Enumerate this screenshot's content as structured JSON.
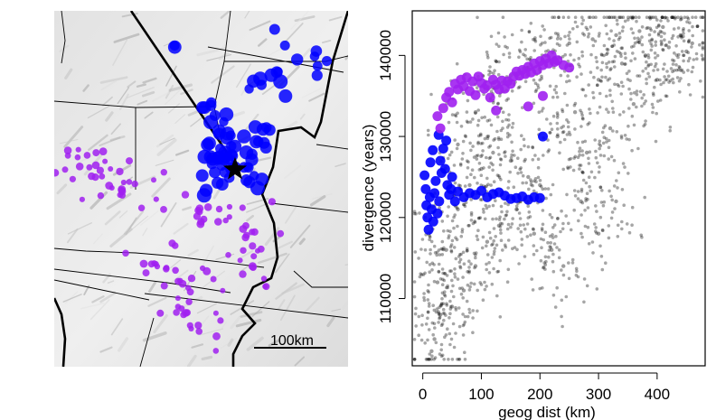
{
  "chart_data": [
    {
      "type": "map",
      "scale_bar_label": "100km",
      "marker": "star",
      "colors": {
        "near_cluster": "#0000ff",
        "far_cluster": "#a020f0",
        "marker": "#000000"
      }
    },
    {
      "type": "scatter",
      "xlabel": "geog dist (km)",
      "ylabel": "divergence (years)",
      "xlim": [
        -18,
        482
      ],
      "ylim": [
        101700,
        145500
      ],
      "x_ticks": [
        0,
        100,
        200,
        300,
        400
      ],
      "y_ticks": [
        110000,
        120000,
        130000,
        140000
      ],
      "series": [
        {
          "color": "#000000",
          "points": [
            [
              10,
              118000
            ],
            [
              25,
              112000
            ],
            [
              40,
              116000
            ],
            [
              60,
              121000
            ],
            [
              80,
              124000
            ],
            [
              100,
              126000
            ],
            [
              120,
              128000
            ],
            [
              150,
              127000
            ],
            [
              180,
              125000
            ],
            [
              200,
              124000
            ],
            [
              230,
              130000
            ],
            [
              260,
              133000
            ],
            [
              300,
              137000
            ],
            [
              340,
              139000
            ],
            [
              380,
              140000
            ],
            [
              420,
              141000
            ],
            [
              450,
              140500
            ],
            [
              30,
              108000
            ],
            [
              50,
              109000
            ],
            [
              70,
              111000
            ],
            [
              90,
              114000
            ],
            [
              110,
              117000
            ],
            [
              130,
              119000
            ],
            [
              160,
              121000
            ],
            [
              190,
              118000
            ],
            [
              220,
              116000
            ],
            [
              240,
              114000
            ],
            [
              20,
              105000
            ],
            [
              15,
              103500
            ],
            [
              60,
              129000
            ],
            [
              90,
              133000
            ],
            [
              120,
              136000
            ],
            [
              150,
              137500
            ],
            [
              180,
              138500
            ],
            [
              210,
              140000
            ],
            [
              250,
              141500
            ],
            [
              290,
              142000
            ],
            [
              330,
              142500
            ],
            [
              370,
              143000
            ],
            [
              410,
              143500
            ],
            [
              440,
              142500
            ],
            [
              460,
              141500
            ],
            [
              280,
              128000
            ],
            [
              320,
              131000
            ],
            [
              360,
              134000
            ],
            [
              400,
              137000
            ],
            [
              270,
              122000
            ],
            [
              300,
              118000
            ],
            [
              330,
              122000
            ]
          ]
        },
        {
          "color": "#0000ff",
          "points": [
            [
              3,
              125200
            ],
            [
              5,
              123500
            ],
            [
              6,
              121500
            ],
            [
              8,
              120000
            ],
            [
              10,
              118500
            ],
            [
              12,
              122500
            ],
            [
              15,
              121000
            ],
            [
              18,
              119500
            ],
            [
              20,
              123000
            ],
            [
              22,
              124500
            ],
            [
              25,
              120500
            ],
            [
              28,
              122000
            ],
            [
              30,
              127000
            ],
            [
              32,
              125500
            ],
            [
              35,
              128500
            ],
            [
              38,
              126000
            ],
            [
              40,
              129500
            ],
            [
              42,
              124000
            ],
            [
              45,
              122800
            ],
            [
              48,
              123500
            ],
            [
              50,
              125000
            ],
            [
              55,
              122000
            ],
            [
              60,
              123200
            ],
            [
              70,
              122500
            ],
            [
              80,
              123000
            ],
            [
              90,
              122800
            ],
            [
              100,
              123300
            ],
            [
              110,
              122500
            ],
            [
              120,
              122900
            ],
            [
              130,
              123100
            ],
            [
              140,
              122700
            ],
            [
              150,
              122300
            ],
            [
              160,
              122400
            ],
            [
              170,
              122600
            ],
            [
              180,
              122200
            ],
            [
              190,
              122500
            ],
            [
              200,
              122400
            ],
            [
              205,
              130000
            ],
            [
              13,
              126800
            ],
            [
              17,
              128300
            ],
            [
              27,
              130200
            ]
          ]
        },
        {
          "color": "#a020f0",
          "points": [
            [
              25,
              132500
            ],
            [
              30,
              131000
            ],
            [
              35,
              133500
            ],
            [
              40,
              134800
            ],
            [
              45,
              135500
            ],
            [
              50,
              134200
            ],
            [
              55,
              136500
            ],
            [
              60,
              135800
            ],
            [
              65,
              137000
            ],
            [
              70,
              136200
            ],
            [
              75,
              137300
            ],
            [
              80,
              135600
            ],
            [
              85,
              136800
            ],
            [
              90,
              135100
            ],
            [
              95,
              137400
            ],
            [
              100,
              136600
            ],
            [
              105,
              135900
            ],
            [
              110,
              136300
            ],
            [
              115,
              134800
            ],
            [
              120,
              137000
            ],
            [
              125,
              136400
            ],
            [
              130,
              135800
            ],
            [
              135,
              136900
            ],
            [
              140,
              135900
            ],
            [
              145,
              136800
            ],
            [
              150,
              136500
            ],
            [
              155,
              137400
            ],
            [
              160,
              138000
            ],
            [
              165,
              137500
            ],
            [
              170,
              138200
            ],
            [
              175,
              137700
            ],
            [
              180,
              138600
            ],
            [
              185,
              137900
            ],
            [
              190,
              139000
            ],
            [
              195,
              138200
            ],
            [
              200,
              139300
            ],
            [
              205,
              138800
            ],
            [
              210,
              139600
            ],
            [
              215,
              139000
            ],
            [
              220,
              140000
            ],
            [
              225,
              139200
            ],
            [
              230,
              139400
            ],
            [
              240,
              138800
            ],
            [
              250,
              138500
            ],
            [
              125,
              133200
            ],
            [
              180,
              133700
            ],
            [
              205,
              135000
            ]
          ]
        }
      ]
    }
  ]
}
